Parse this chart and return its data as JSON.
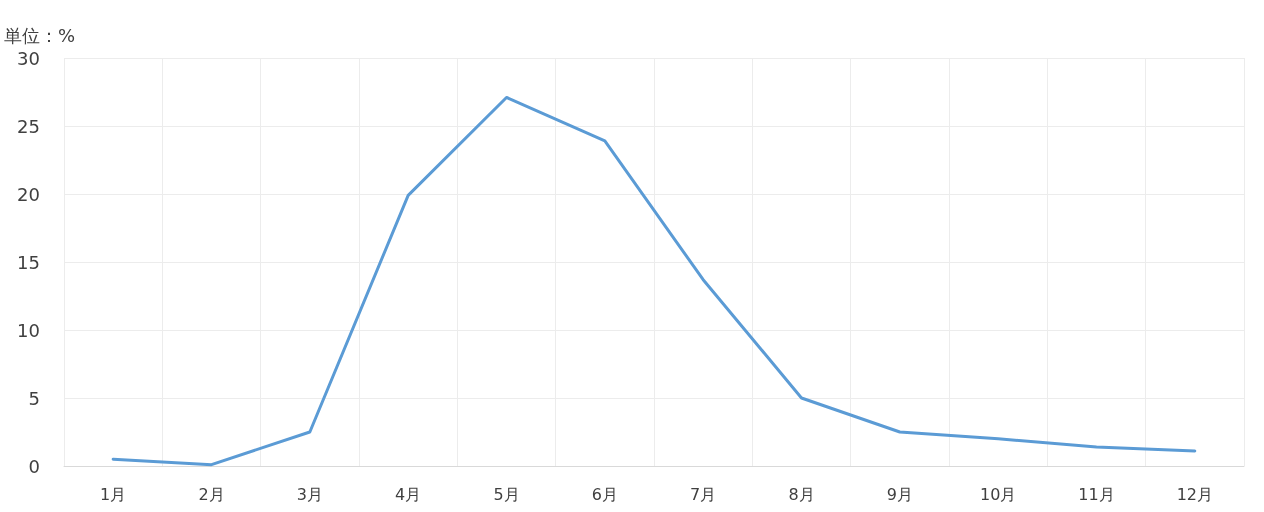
{
  "chart_data": {
    "type": "line",
    "ylabel": "単位：%",
    "categories": [
      "1月",
      "2月",
      "3月",
      "4月",
      "5月",
      "6月",
      "7月",
      "8月",
      "9月",
      "10月",
      "11月",
      "12月"
    ],
    "series": [
      {
        "color": "#5b9bd5",
        "values": [
          0.5,
          0.1,
          2.5,
          19.9,
          27.1,
          23.9,
          13.7,
          5.0,
          2.5,
          2.0,
          1.4,
          1.1
        ]
      }
    ],
    "ylim": [
      0,
      30
    ],
    "yticks": [
      0,
      5,
      10,
      15,
      20,
      25,
      30
    ],
    "grid": true,
    "marker": "none",
    "line_style": "solid"
  }
}
